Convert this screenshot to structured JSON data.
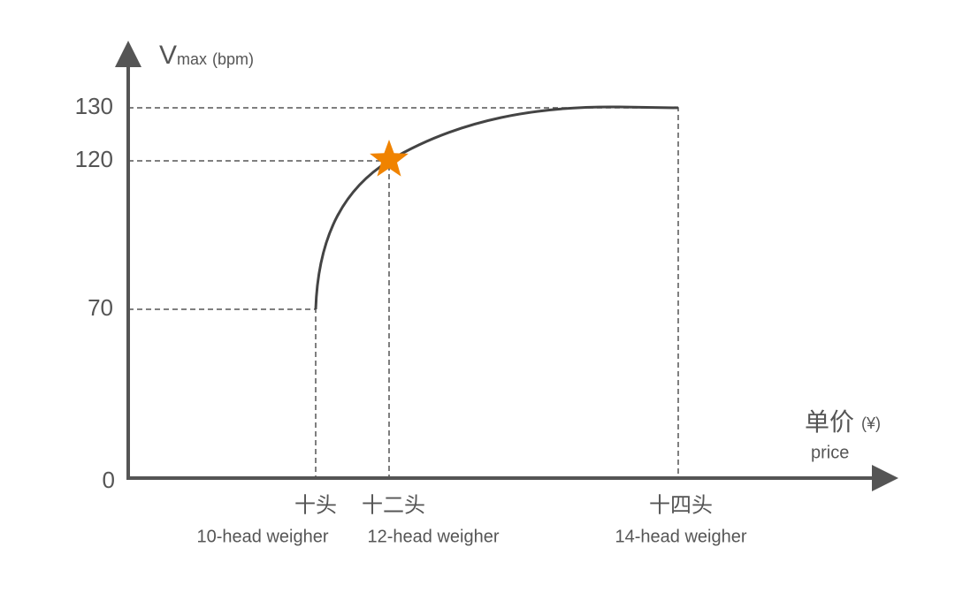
{
  "y_axis": {
    "label": "V",
    "subscript": "max",
    "unit": "(bpm)",
    "ticks": [
      "130",
      "120",
      "70",
      "0"
    ]
  },
  "x_axis": {
    "label": "单价",
    "unit": "(¥)",
    "label_en": "price"
  },
  "categories": [
    {
      "label": "十头",
      "label_en": "10-head weigher"
    },
    {
      "label": "十二头",
      "label_en": "12-head weigher"
    },
    {
      "label": "十四头",
      "label_en": "14-head weigher"
    }
  ]
}
